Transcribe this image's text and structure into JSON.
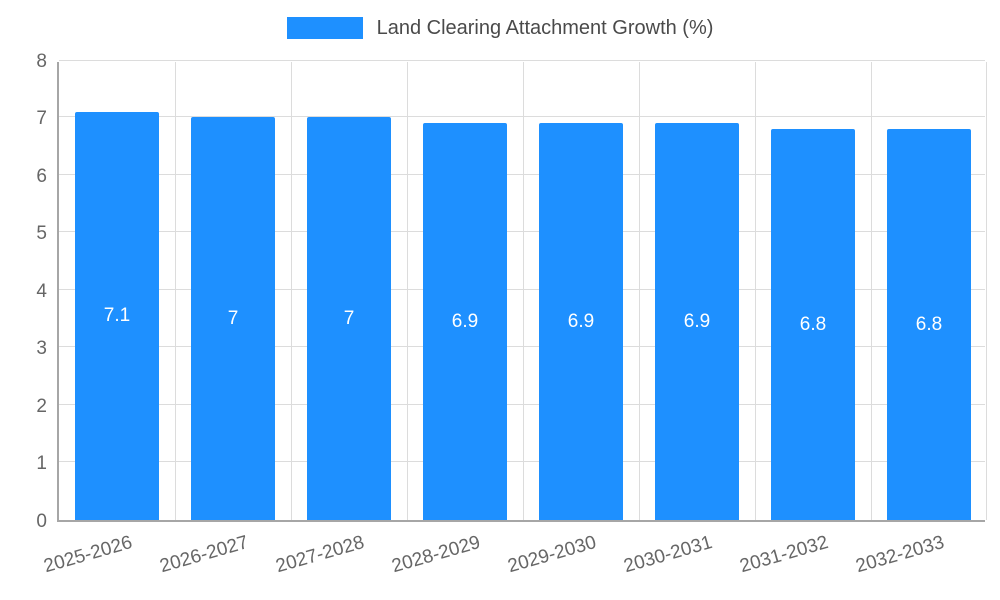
{
  "legend": {
    "label": "Land Clearing Attachment Growth (%)"
  },
  "chart_data": {
    "type": "bar",
    "title": "Land Clearing Attachment Growth (%)",
    "categories": [
      "2025-2026",
      "2026-2027",
      "2027-2028",
      "2028-2029",
      "2029-2030",
      "2030-2031",
      "2031-2032",
      "2032-2033"
    ],
    "values": [
      7.1,
      7,
      7,
      6.9,
      6.9,
      6.9,
      6.8,
      6.8
    ],
    "bar_labels": [
      "7.1",
      "7",
      "7",
      "6.9",
      "6.9",
      "6.9",
      "6.8",
      "6.8"
    ],
    "xlabel": "",
    "ylabel": "",
    "ylim": [
      0,
      8
    ],
    "yticks": [
      0,
      1,
      2,
      3,
      4,
      5,
      6,
      7,
      8
    ],
    "grid": true,
    "legend_position": "top-center",
    "colors": {
      "bar": "#1E90FF",
      "bar_label": "#FFFFFF",
      "axis_text": "#666666",
      "gridline": "#DCDCDC",
      "axis_line": "#A6A6A6",
      "legend_text": "#4A4A4A"
    }
  }
}
